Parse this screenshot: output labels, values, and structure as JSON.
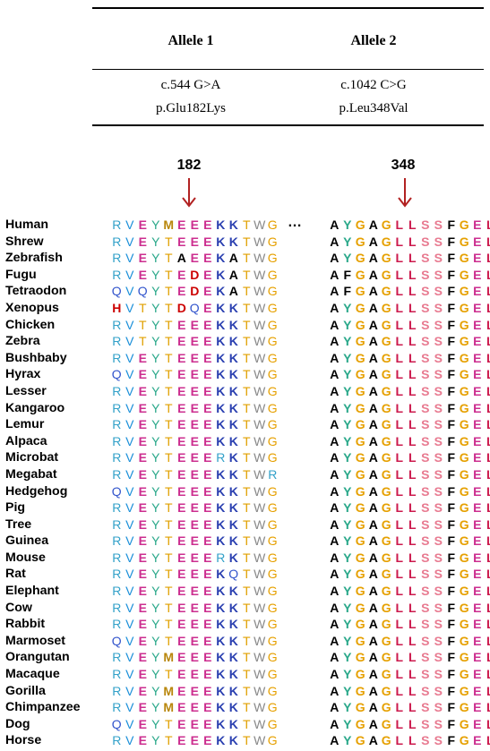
{
  "table": {
    "headers": [
      "Allele 1",
      "Allele 2"
    ],
    "rows": [
      [
        "c.544 G>A",
        "c.1042 C>G"
      ],
      [
        "p.Glu182Lys",
        "p.Leu348Val"
      ]
    ]
  },
  "markers": [
    {
      "label": "182",
      "color": "#b22222"
    },
    {
      "label": "348",
      "color": "#b22222"
    }
  ],
  "gap_symbol": "…",
  "colors": {
    "R": "#33a1c9",
    "V": "#1a8fd9",
    "E": "#cc2e8f",
    "Y": "#2aa88a",
    "T": "#e0a000",
    "K": "#2a3fb0",
    "W": "#888888",
    "G": "#e6a000",
    "M": "#b8860b",
    "A": "#000000",
    "D": "#cc0000",
    "Q": "#3355cc",
    "H": "#cc0000",
    "L": "#cc1a4d",
    "S": "#e87a90",
    "F": "#000000",
    "P": "#000000"
  },
  "species": [
    {
      "name": "Human",
      "s1": "RVEYMEEEKKTWG",
      "s2": "AYGAGLLSSFGEL"
    },
    {
      "name": "Shrew",
      "s1": "RVEYTEEEKKTWG",
      "s2": "AYGAGLLSSFGEL"
    },
    {
      "name": "Zebrafish",
      "s1": "RVEYTAEEKATWG",
      "s2": "AYGAGLLSSFGEL"
    },
    {
      "name": "Fugu",
      "s1": "RVEYTEDEKATWG",
      "s2": "AFGAGLLSSFGEL"
    },
    {
      "name": "Tetraodon",
      "s1": "QVQYTEDEKATWG",
      "s2": "AFGAGLLSSFGEL"
    },
    {
      "name": "Xenopus",
      "s1": "HVTYTDQEKKTWG",
      "s2": "AYGAGLLSSFGEL"
    },
    {
      "name": "Chicken",
      "s1": "RVTYTEEEKKTWG",
      "s2": "AYGAGLLSSFGEL"
    },
    {
      "name": "Zebra",
      "s1": "RVTYTEEEKKTWG",
      "s2": "AYGAGLLSSFGEL"
    },
    {
      "name": "Bushbaby",
      "s1": "RVEYTEEEKKTWG",
      "s2": "AYGAGLLSSFGEL"
    },
    {
      "name": "Hyrax",
      "s1": "QVEYTEEEKKTWG",
      "s2": "AYGAGLLSSFGEL"
    },
    {
      "name": "Lesser",
      "s1": "RVEYTEEEKKTWG",
      "s2": "AYGAGLLSSFGEL"
    },
    {
      "name": "Kangaroo",
      "s1": "RVEYTEEEKKTWG",
      "s2": "AYGAGLLSSFGEL"
    },
    {
      "name": "Lemur",
      "s1": "RVEYTEEEKKTWG",
      "s2": "AYGAGLLSSFGEL"
    },
    {
      "name": "Alpaca",
      "s1": "RVEYTEEEKKTWG",
      "s2": "AYGAGLLSSFGEL"
    },
    {
      "name": "Microbat",
      "s1": "RVEYTEEERKTWG",
      "s2": "AYGAGLLSSFGEL"
    },
    {
      "name": "Megabat",
      "s1": "RVEYTEEEKKTWR",
      "s2": "AYGAGLLSSFGEL"
    },
    {
      "name": "Hedgehog",
      "s1": "QVEYTEEEKKTWG",
      "s2": "AYGAGLLSSFGEL"
    },
    {
      "name": "Pig",
      "s1": "RVEYTEEEKKTWG",
      "s2": "AYGAGLLSSFGEL"
    },
    {
      "name": "Tree",
      "s1": "RVEYTEEEKKTWG",
      "s2": "AYGAGLLSSFGEL"
    },
    {
      "name": "Guinea",
      "s1": "RVEYTEEEKKTWG",
      "s2": "AYGAGLLSSFGEL"
    },
    {
      "name": "Mouse",
      "s1": "RVEYTEEERKTWG",
      "s2": "AYGAGLLSSFGEL"
    },
    {
      "name": "Rat",
      "s1": "RVEYTEEEKQTWG",
      "s2": "AYGAGLLSSFGEL"
    },
    {
      "name": "Elephant",
      "s1": "RVEYTEEEKKTWG",
      "s2": "AYGAGLLSSFGEL"
    },
    {
      "name": "Cow",
      "s1": "RVEYTEEEKKTWG",
      "s2": "AYGAGLLSSFGEL"
    },
    {
      "name": "Rabbit",
      "s1": "RVEYTEEEKKTWG",
      "s2": "AYGAGLLSSFGEL"
    },
    {
      "name": "Marmoset",
      "s1": "QVEYTEEEKKTWG",
      "s2": "AYGAGLLSSFGEL"
    },
    {
      "name": "Orangutan",
      "s1": "RVEYMEEEKKTWG",
      "s2": "AYGAGLLSSFGEL"
    },
    {
      "name": "Macaque",
      "s1": "RVEYTEEEKKTWG",
      "s2": "AYGAGLLSSFGEL"
    },
    {
      "name": "Gorilla",
      "s1": "RVEYMEEEKKTWG",
      "s2": "AYGAGLLSSFGEL"
    },
    {
      "name": "Chimpanzee",
      "s1": "RVEYMEEEKKTWG",
      "s2": "AYGAGLLSSFGEL"
    },
    {
      "name": "Dog",
      "s1": "QVEYTEEEKKTWG",
      "s2": "AYGAGLLSSFGEL"
    },
    {
      "name": "Horse",
      "s1": "RVEYTEEEKKTWG",
      "s2": "AYGAGLLSSFGEL"
    }
  ]
}
